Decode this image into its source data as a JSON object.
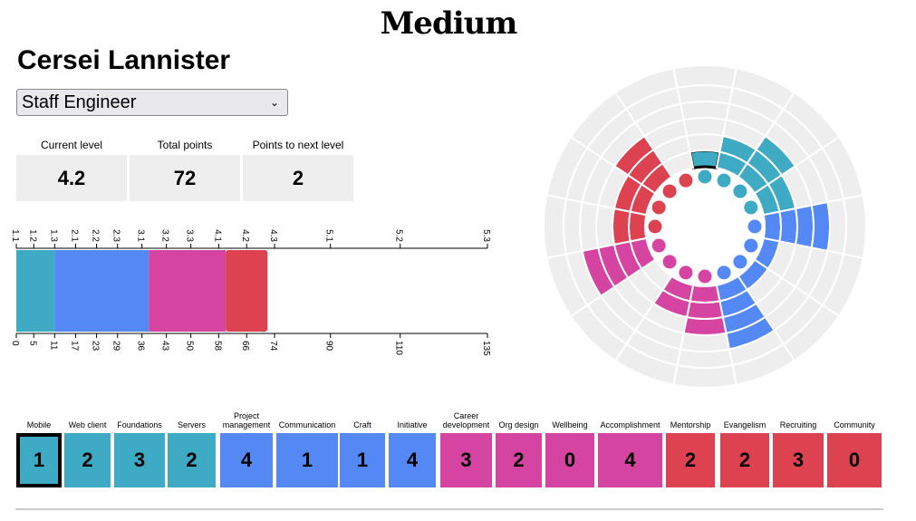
{
  "brand": "Medium",
  "person_name": "Cersei Lannister",
  "title_select": {
    "value": "Staff Engineer"
  },
  "stats": [
    {
      "label": "Current level",
      "value": "4.2"
    },
    {
      "label": "Total points",
      "value": "72"
    },
    {
      "label": "Points to next level",
      "value": "2"
    }
  ],
  "points_bar": {
    "levels": [
      "1.1",
      "1.2",
      "1.3",
      "2.1",
      "2.2",
      "2.3",
      "3.1",
      "3.2",
      "3.3",
      "4.1",
      "4.2",
      "4.3",
      "5.1",
      "5.2",
      "5.3"
    ],
    "points": [
      0,
      5,
      11,
      17,
      23,
      29,
      36,
      43,
      50,
      58,
      66,
      74,
      90,
      110,
      135
    ],
    "max": 135,
    "segments": [
      {
        "category": "A",
        "points": 11
      },
      {
        "category": "B",
        "points": 27
      },
      {
        "category": "C",
        "points": 22
      },
      {
        "category": "D",
        "points": 12
      }
    ]
  },
  "colors": {
    "A": "#3eaac4",
    "B": "#5489f5",
    "C": "#d644a2",
    "D": "#dc4250",
    "empty": "#eeeeee"
  },
  "tracks": [
    {
      "label": "Mobile",
      "level": "1",
      "category": "A",
      "selected": true
    },
    {
      "label": "Web client",
      "level": "2",
      "category": "A"
    },
    {
      "label": "Foundations",
      "level": "3",
      "category": "A"
    },
    {
      "label": "Servers",
      "level": "2",
      "category": "A"
    },
    {
      "label": "Project management",
      "level": "4",
      "category": "B"
    },
    {
      "label": "Communication",
      "level": "1",
      "category": "B"
    },
    {
      "label": "Craft",
      "level": "1",
      "category": "B"
    },
    {
      "label": "Initiative",
      "level": "4",
      "category": "B"
    },
    {
      "label": "Career development",
      "level": "3",
      "category": "C"
    },
    {
      "label": "Org design",
      "level": "2",
      "category": "C"
    },
    {
      "label": "Wellbeing",
      "level": "0",
      "category": "C"
    },
    {
      "label": "Accomplishment",
      "level": "4",
      "category": "C"
    },
    {
      "label": "Mentorship",
      "level": "2",
      "category": "D"
    },
    {
      "label": "Evangelism",
      "level": "2",
      "category": "D"
    },
    {
      "label": "Recruiting",
      "level": "3",
      "category": "D"
    },
    {
      "label": "Community",
      "level": "0",
      "category": "D"
    }
  ]
}
